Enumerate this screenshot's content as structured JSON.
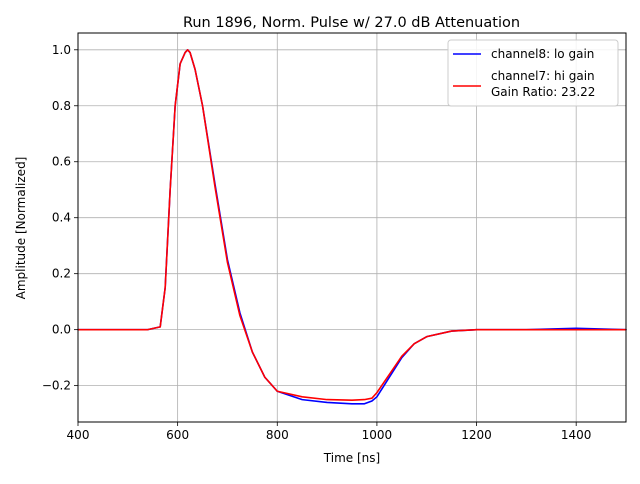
{
  "chart_data": {
    "type": "line",
    "title": "Run 1896, Norm. Pulse w/ 27.0 dB Attenuation",
    "xlabel": "Time [ns]",
    "ylabel": "Amplitude [Normalized]",
    "xlim": [
      400,
      1500
    ],
    "ylim": [
      -0.33,
      1.06
    ],
    "xticks": [
      400,
      600,
      800,
      1000,
      1200,
      1400
    ],
    "xtick_labels": [
      "400",
      "600",
      "800",
      "1000",
      "1200",
      "1400"
    ],
    "yticks": [
      -0.2,
      0.0,
      0.2,
      0.4,
      0.6,
      0.8,
      1.0
    ],
    "ytick_labels": [
      "−0.2",
      "0.0",
      "0.2",
      "0.4",
      "0.6",
      "0.8",
      "1.0"
    ],
    "grid": true,
    "legend_position": "top-right",
    "series": [
      {
        "name": "channel8: lo gain",
        "color": "#0000ff",
        "x": [
          400,
          450,
          500,
          540,
          565,
          575,
          585,
          595,
          605,
          615,
          620,
          625,
          635,
          650,
          675,
          700,
          725,
          750,
          775,
          800,
          850,
          900,
          950,
          975,
          990,
          1000,
          1025,
          1050,
          1075,
          1100,
          1150,
          1200,
          1250,
          1300,
          1400,
          1500
        ],
        "y": [
          0.0,
          0.0,
          0.0,
          0.0,
          0.01,
          0.15,
          0.5,
          0.8,
          0.95,
          0.99,
          1.0,
          0.99,
          0.93,
          0.8,
          0.52,
          0.25,
          0.06,
          -0.08,
          -0.17,
          -0.22,
          -0.25,
          -0.26,
          -0.265,
          -0.265,
          -0.255,
          -0.24,
          -0.17,
          -0.1,
          -0.05,
          -0.025,
          -0.005,
          0.0,
          0.0,
          0.0,
          0.005,
          0.0
        ]
      },
      {
        "name": "channel7: hi gain",
        "color": "#ff0000",
        "x": [
          400,
          450,
          500,
          540,
          565,
          575,
          585,
          595,
          605,
          615,
          620,
          625,
          635,
          650,
          675,
          700,
          725,
          750,
          775,
          800,
          850,
          900,
          950,
          975,
          990,
          1000,
          1025,
          1050,
          1075,
          1100,
          1150,
          1200,
          1250,
          1300,
          1400,
          1500
        ],
        "y": [
          0.0,
          0.0,
          0.0,
          0.0,
          0.01,
          0.15,
          0.5,
          0.8,
          0.95,
          0.99,
          1.0,
          0.99,
          0.93,
          0.8,
          0.51,
          0.24,
          0.05,
          -0.08,
          -0.17,
          -0.22,
          -0.24,
          -0.25,
          -0.252,
          -0.25,
          -0.245,
          -0.225,
          -0.16,
          -0.095,
          -0.05,
          -0.025,
          -0.005,
          0.0,
          0.0,
          0.0,
          0.0,
          0.0
        ]
      }
    ],
    "legend_extra_text": "Gain Ratio: 23.22"
  }
}
